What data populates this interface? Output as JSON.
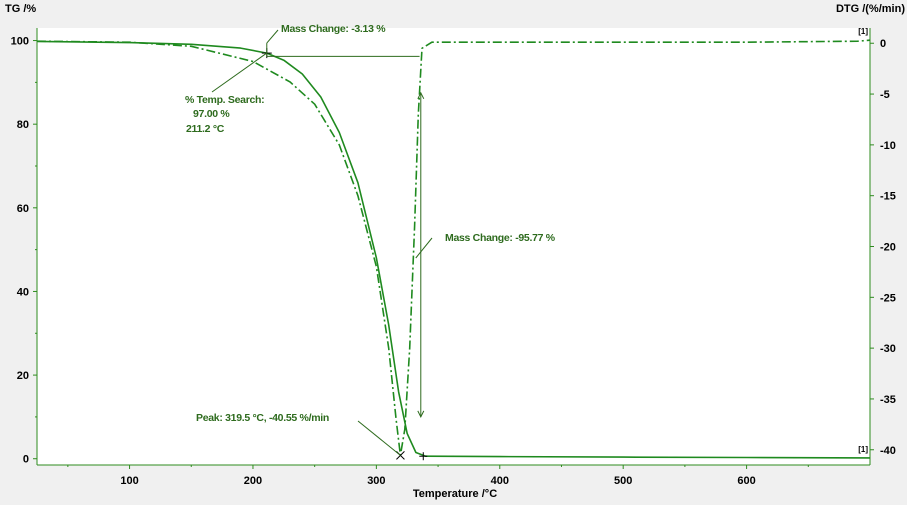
{
  "chart_data": {
    "type": "line",
    "colors": {
      "axis": "#2e8b1e",
      "series": "#1f8a1f",
      "annotation": "#2e6b1e",
      "background": "#ffffff",
      "marker": "#000000"
    },
    "xlabel": "Temperature /°C",
    "x_ticks": [
      "100",
      "200",
      "300",
      "400",
      "500",
      "600"
    ],
    "xlim": [
      25,
      700
    ],
    "left_axis": {
      "label": "TG /%",
      "ylim": [
        -1.5,
        103
      ],
      "ticks": [
        "0",
        "20",
        "40",
        "60",
        "80",
        "100"
      ]
    },
    "right_axis": {
      "label": "DTG /(%/min)",
      "ylim": [
        -41.5,
        1.5
      ],
      "ticks": [
        "0",
        "-5",
        "-10",
        "-15",
        "-20",
        "-25",
        "-30",
        "-35",
        "-40"
      ]
    },
    "series": [
      {
        "axis": "left",
        "style": "solid",
        "x": [
          25,
          50,
          100,
          150,
          190,
          211.2,
          225,
          240,
          255,
          270,
          285,
          300,
          310,
          318,
          325,
          332,
          340,
          400,
          500,
          600,
          700
        ],
        "y": [
          99.8,
          99.7,
          99.5,
          99.1,
          98.2,
          97.0,
          95.3,
          92.0,
          86.5,
          78.0,
          66.0,
          48.0,
          32.0,
          16.0,
          6.0,
          1.5,
          0.6,
          0.5,
          0.4,
          0.3,
          0.2
        ],
        "end_marker": "[1]"
      },
      {
        "axis": "right",
        "style": "dashdot",
        "x": [
          25,
          100,
          150,
          200,
          230,
          250,
          270,
          285,
          300,
          310,
          316,
          319.5,
          323,
          327,
          331,
          334,
          337,
          345,
          400,
          500,
          600,
          690,
          700
        ],
        "y": [
          0.2,
          0.1,
          -0.3,
          -1.8,
          -3.8,
          -6.0,
          -10.0,
          -15.0,
          -22.0,
          -30.0,
          -37.0,
          -40.55,
          -38.0,
          -30.0,
          -18.0,
          -7.0,
          -0.5,
          0.1,
          0.1,
          0.1,
          0.1,
          0.2,
          0.3
        ],
        "end_marker": "[1]"
      }
    ],
    "annotations": {
      "mass_change_1": "Mass Change: -3.13 %",
      "temp_search": [
        "% Temp. Search:",
        "97.00 %",
        "211.2 °C"
      ],
      "mass_change_2": "Mass Change: -95.77 %",
      "peak": "Peak: 319.5 °C, -40.55 %/min"
    },
    "grid": false,
    "legend": "none"
  }
}
